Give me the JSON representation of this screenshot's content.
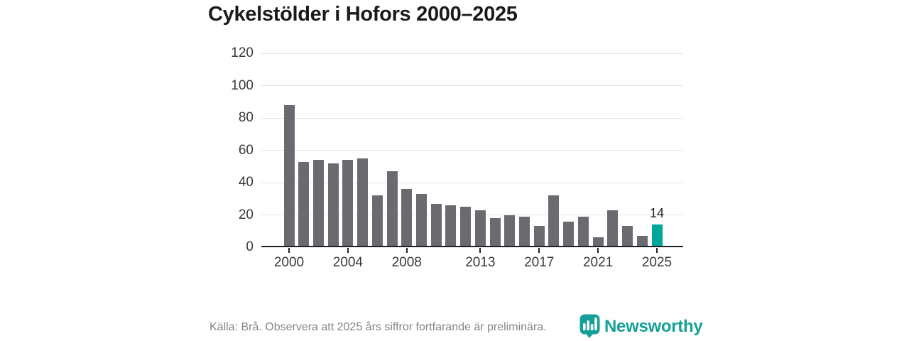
{
  "title": "Cykelstölder i Hofors 2000–2025",
  "footer": {
    "source_note": "Källa: Brå. Observera att 2025 års siffror fortfarande är preliminära.",
    "brand": "Newsworthy"
  },
  "colors": {
    "bar": "#6b6a71",
    "highlight": "#00a69b",
    "brand": "#14a096",
    "grid": "#e3e3e3",
    "axis": "#222222",
    "tick_text": "#3a3a3a",
    "muted_text": "#858585"
  },
  "chart_data": {
    "type": "bar",
    "title": "Cykelstölder i Hofors 2000–2025",
    "x": [
      2000,
      2001,
      2002,
      2003,
      2004,
      2005,
      2006,
      2007,
      2008,
      2009,
      2010,
      2011,
      2012,
      2013,
      2014,
      2015,
      2016,
      2017,
      2018,
      2019,
      2020,
      2021,
      2022,
      2023,
      2024,
      2025
    ],
    "values": [
      88,
      53,
      54,
      52,
      54,
      55,
      32,
      47,
      36,
      33,
      27,
      26,
      25,
      23,
      18,
      20,
      19,
      13,
      32,
      16,
      19,
      6,
      23,
      13,
      7,
      14
    ],
    "highlight_x": 2025,
    "annotations": [
      {
        "x": 2025,
        "text": "14"
      }
    ],
    "yticks": [
      0,
      20,
      40,
      60,
      80,
      100,
      120
    ],
    "xticks": [
      2000,
      2004,
      2008,
      2013,
      2017,
      2021,
      2025
    ],
    "ylim": [
      0,
      120
    ],
    "grid": "horizontal",
    "legend": null,
    "xlabel": "",
    "ylabel": ""
  }
}
